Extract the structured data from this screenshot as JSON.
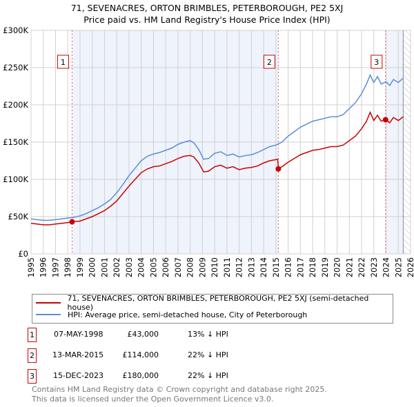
{
  "chart_data": {
    "type": "line",
    "title": "71, SEVENACRES, ORTON BRIMBLES, PETERBOROUGH, PE2 5XJ",
    "subtitle": "Price paid vs. HM Land Registry's House Price Index (HPI)",
    "xlim": [
      1995,
      2026
    ],
    "ylim": [
      0,
      300000
    ],
    "x_ticks": [
      "1995",
      "1996",
      "1997",
      "1998",
      "1999",
      "2000",
      "2001",
      "2002",
      "2003",
      "2004",
      "2005",
      "2006",
      "2007",
      "2008",
      "2009",
      "2010",
      "2011",
      "2012",
      "2013",
      "2014",
      "2015",
      "2016",
      "2017",
      "2018",
      "2019",
      "2020",
      "2021",
      "2022",
      "2023",
      "2024",
      "2025",
      "2026"
    ],
    "y_ticks": [
      {
        "v": 0,
        "label": "£0"
      },
      {
        "v": 50000,
        "label": "£50K"
      },
      {
        "v": 100000,
        "label": "£100K"
      },
      {
        "v": 150000,
        "label": "£150K"
      },
      {
        "v": 200000,
        "label": "£200K"
      },
      {
        "v": 250000,
        "label": "£250K"
      },
      {
        "v": 300000,
        "label": "£300K"
      }
    ],
    "grid": true,
    "series": [
      {
        "name": "71, SEVENACRES, ORTON BRIMBLES, PETERBOROUGH, PE2 5XJ (semi-detached house)",
        "color": "#cc0000",
        "x": [
          1995,
          1995.5,
          1996,
          1996.5,
          1997,
          1997.5,
          1998,
          1998.35,
          1999,
          1999.5,
          2000,
          2000.5,
          2001,
          2001.5,
          2002,
          2002.5,
          2003,
          2003.5,
          2004,
          2004.5,
          2005,
          2005.5,
          2006,
          2006.5,
          2007,
          2007.5,
          2008,
          2008.3,
          2008.7,
          2009.1,
          2009.5,
          2010,
          2010.5,
          2011,
          2011.5,
          2012,
          2012.5,
          2013,
          2013.5,
          2014,
          2014.5,
          2015.15,
          2015.2,
          2015.5,
          2016,
          2016.5,
          2017,
          2017.5,
          2018,
          2018.5,
          2019,
          2019.5,
          2020,
          2020.5,
          2021,
          2021.5,
          2022,
          2022.4,
          2022.7,
          2023,
          2023.3,
          2023.6,
          2023.96,
          2024.3,
          2024.6,
          2025,
          2025.4
        ],
        "y": [
          41000,
          40000,
          39000,
          39000,
          40000,
          41000,
          42000,
          43000,
          44000,
          47000,
          50000,
          54000,
          58000,
          64000,
          71000,
          81000,
          91000,
          100000,
          109000,
          114000,
          117000,
          118000,
          121000,
          124000,
          128000,
          131000,
          132000,
          130000,
          122000,
          110000,
          111000,
          117000,
          119000,
          115000,
          117000,
          113000,
          115000,
          116000,
          118000,
          122000,
          125000,
          127000,
          114000,
          117000,
          123000,
          128000,
          133000,
          136000,
          139000,
          140000,
          142000,
          144000,
          144000,
          146000,
          152000,
          158000,
          168000,
          178000,
          190000,
          179000,
          186000,
          178000,
          180000,
          176000,
          183000,
          179000,
          184000
        ]
      },
      {
        "name": "HPI: Average price, semi-detached house, City of Peterborough",
        "color": "#5b8dd6",
        "x": [
          1995,
          1995.5,
          1996,
          1996.5,
          1997,
          1997.5,
          1998,
          1998.5,
          1999,
          1999.5,
          2000,
          2000.5,
          2001,
          2001.5,
          2002,
          2002.5,
          2003,
          2003.5,
          2004,
          2004.5,
          2005,
          2005.5,
          2006,
          2006.5,
          2007,
          2007.5,
          2008,
          2008.3,
          2008.7,
          2009.1,
          2009.5,
          2010,
          2010.5,
          2011,
          2011.5,
          2012,
          2012.5,
          2013,
          2013.5,
          2014,
          2014.5,
          2015,
          2015.5,
          2016,
          2016.5,
          2017,
          2017.5,
          2018,
          2018.5,
          2019,
          2019.5,
          2020,
          2020.5,
          2021,
          2021.5,
          2022,
          2022.4,
          2022.7,
          2023,
          2023.3,
          2023.6,
          2024,
          2024.3,
          2024.6,
          2025,
          2025.4
        ],
        "y": [
          47000,
          46000,
          45000,
          45000,
          46000,
          47000,
          48000,
          49000,
          51000,
          54000,
          58000,
          62000,
          67000,
          73000,
          82000,
          93000,
          105000,
          115000,
          125000,
          131000,
          134000,
          136000,
          139000,
          142000,
          147000,
          150000,
          152000,
          149000,
          140000,
          127000,
          128000,
          135000,
          137000,
          132000,
          134000,
          130000,
          132000,
          133000,
          136000,
          140000,
          144000,
          146000,
          150000,
          158000,
          164000,
          170000,
          174000,
          178000,
          180000,
          182000,
          184000,
          184000,
          187000,
          195000,
          203000,
          215000,
          228000,
          240000,
          230000,
          238000,
          228000,
          231000,
          226000,
          234000,
          230000,
          236000
        ]
      }
    ],
    "sales": [
      {
        "id": "1",
        "x": 1998.35,
        "y": 43000,
        "date": "07-MAY-1998",
        "price": "£43,000",
        "hpi": "13% ↓ HPI"
      },
      {
        "id": "2",
        "x": 2015.2,
        "y": 114000,
        "date": "13-MAR-2015",
        "price": "£114,000",
        "hpi": "22% ↓ HPI"
      },
      {
        "id": "3",
        "x": 2023.96,
        "y": 180000,
        "date": "15-DEC-2023",
        "price": "£180,000",
        "hpi": "22% ↓ HPI"
      }
    ],
    "data_end": 2025.4,
    "legend_position": "bottom"
  },
  "footer": [
    "Contains HM Land Registry data © Crown copyright and database right 2025.",
    "This data is licensed under the Open Government Licence v3.0."
  ]
}
